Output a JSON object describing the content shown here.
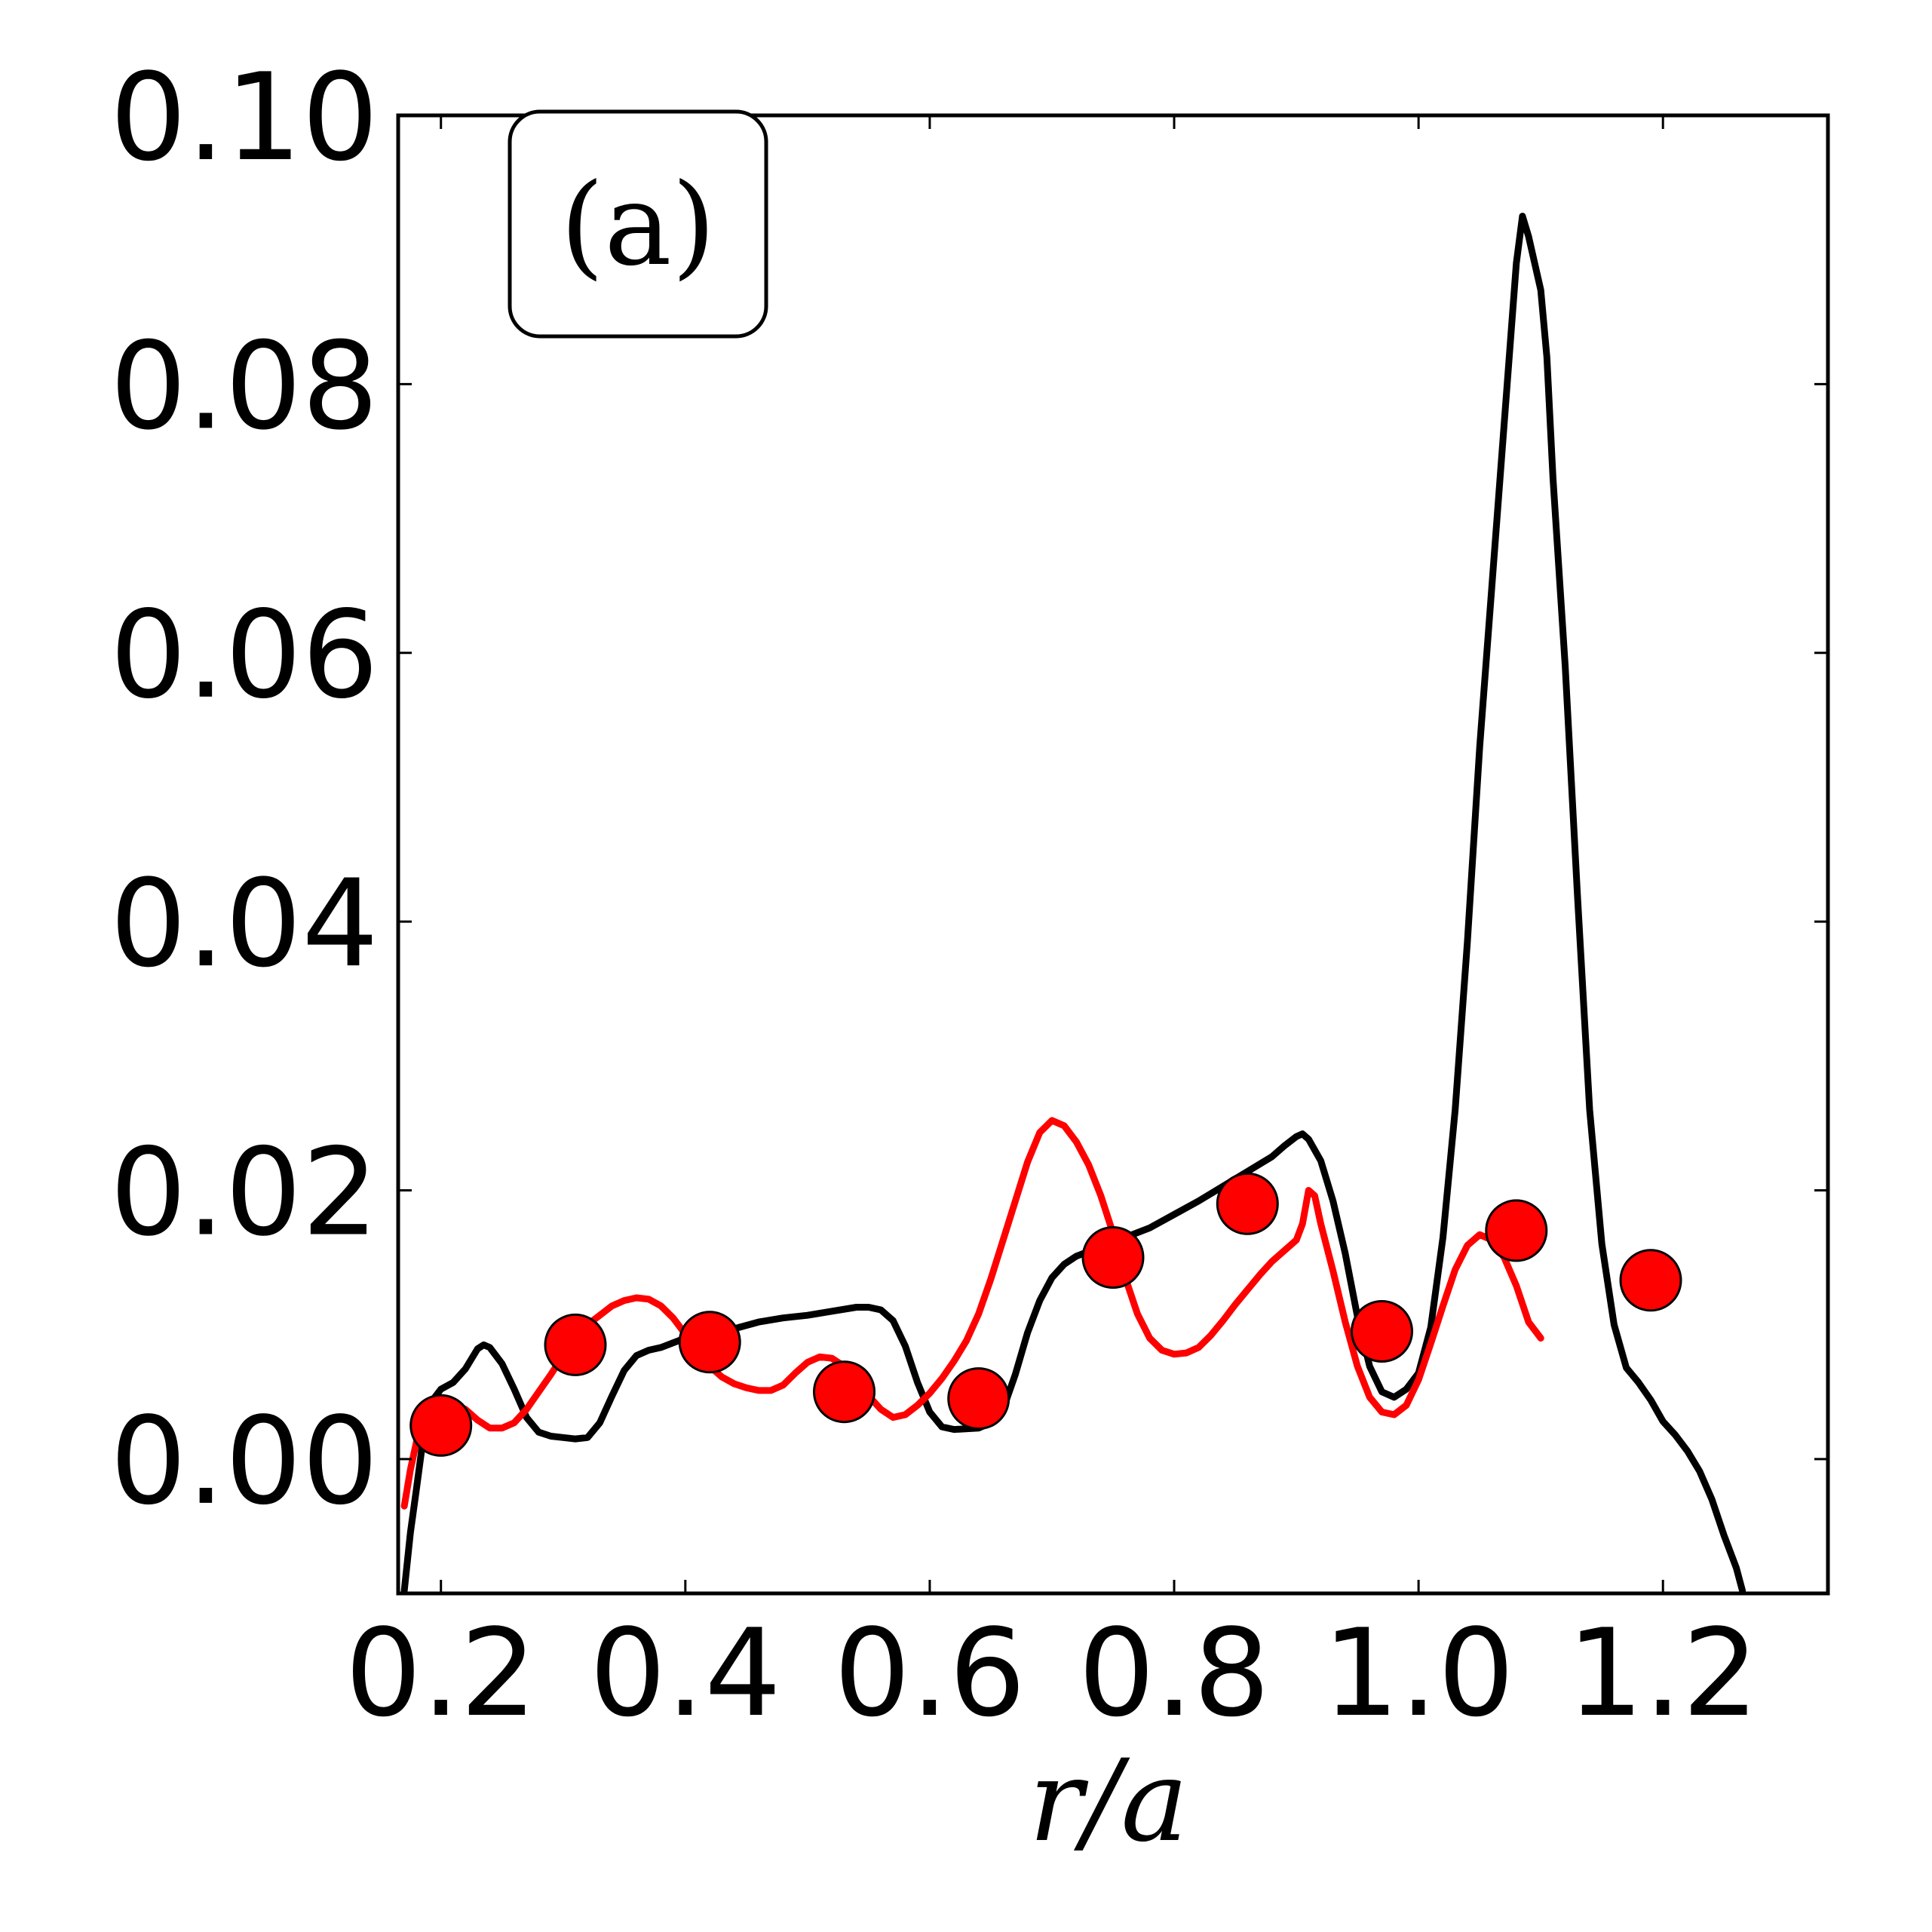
{
  "chart_data": {
    "type": "line",
    "panel_label": "(a)",
    "xlabel": "r/a",
    "ylabel": "",
    "xlim": [
      0.165,
      1.335
    ],
    "ylim": [
      -0.01,
      0.1
    ],
    "xticks": [
      0.2,
      0.4,
      0.6,
      0.8,
      1.0,
      1.2
    ],
    "xtick_labels": [
      "0.2",
      "0.4",
      "0.6",
      "0.8",
      "1.0",
      "1.2"
    ],
    "yticks": [
      0.0,
      0.02,
      0.04,
      0.06,
      0.08,
      0.1
    ],
    "ytick_labels": [
      "0.00",
      "0.02",
      "0.04",
      "0.06",
      "0.08",
      "0.10"
    ],
    "grid": false,
    "series": [
      {
        "color": "#000000",
        "style": "line",
        "points": [
          [
            0.17,
            -0.0098
          ],
          [
            0.175,
            -0.0055
          ],
          [
            0.18,
            -0.0022
          ],
          [
            0.185,
            0.0012
          ],
          [
            0.19,
            0.0036
          ],
          [
            0.195,
            0.0046
          ],
          [
            0.2,
            0.0052
          ],
          [
            0.21,
            0.0057
          ],
          [
            0.22,
            0.0067
          ],
          [
            0.23,
            0.0082
          ],
          [
            0.235,
            0.0085
          ],
          [
            0.24,
            0.0083
          ],
          [
            0.25,
            0.0071
          ],
          [
            0.26,
            0.0052
          ],
          [
            0.27,
            0.0031
          ],
          [
            0.28,
            0.002
          ],
          [
            0.29,
            0.0017
          ],
          [
            0.3,
            0.0016
          ],
          [
            0.31,
            0.0015
          ],
          [
            0.32,
            0.0016
          ],
          [
            0.33,
            0.0027
          ],
          [
            0.34,
            0.0047
          ],
          [
            0.35,
            0.0066
          ],
          [
            0.36,
            0.0077
          ],
          [
            0.37,
            0.0081
          ],
          [
            0.38,
            0.0083
          ],
          [
            0.4,
            0.009
          ],
          [
            0.42,
            0.0094
          ],
          [
            0.44,
            0.0097
          ],
          [
            0.46,
            0.0102
          ],
          [
            0.48,
            0.0105
          ],
          [
            0.5,
            0.0107
          ],
          [
            0.52,
            0.011
          ],
          [
            0.54,
            0.0113
          ],
          [
            0.55,
            0.0113
          ],
          [
            0.56,
            0.0111
          ],
          [
            0.57,
            0.0103
          ],
          [
            0.58,
            0.0084
          ],
          [
            0.59,
            0.0057
          ],
          [
            0.6,
            0.0035
          ],
          [
            0.61,
            0.0024
          ],
          [
            0.62,
            0.0022
          ],
          [
            0.64,
            0.0023
          ],
          [
            0.65,
            0.0027
          ],
          [
            0.66,
            0.0037
          ],
          [
            0.67,
            0.0063
          ],
          [
            0.68,
            0.0094
          ],
          [
            0.69,
            0.0118
          ],
          [
            0.7,
            0.0135
          ],
          [
            0.71,
            0.0145
          ],
          [
            0.72,
            0.0151
          ],
          [
            0.74,
            0.0158
          ],
          [
            0.76,
            0.0165
          ],
          [
            0.78,
            0.0172
          ],
          [
            0.8,
            0.0182
          ],
          [
            0.82,
            0.0192
          ],
          [
            0.84,
            0.0203
          ],
          [
            0.86,
            0.0214
          ],
          [
            0.88,
            0.0225
          ],
          [
            0.89,
            0.0233
          ],
          [
            0.9,
            0.024
          ],
          [
            0.905,
            0.0242
          ],
          [
            0.91,
            0.0238
          ],
          [
            0.92,
            0.0222
          ],
          [
            0.93,
            0.0192
          ],
          [
            0.94,
            0.0153
          ],
          [
            0.95,
            0.0106
          ],
          [
            0.96,
            0.0069
          ],
          [
            0.97,
            0.005
          ],
          [
            0.98,
            0.0046
          ],
          [
            0.99,
            0.0052
          ],
          [
            1.0,
            0.0064
          ],
          [
            1.01,
            0.0098
          ],
          [
            1.02,
            0.0165
          ],
          [
            1.03,
            0.026
          ],
          [
            1.04,
            0.0385
          ],
          [
            1.05,
            0.053
          ],
          [
            1.06,
            0.065
          ],
          [
            1.07,
            0.077
          ],
          [
            1.08,
            0.089
          ],
          [
            1.085,
            0.0925
          ],
          [
            1.09,
            0.091
          ],
          [
            1.1,
            0.087
          ],
          [
            1.105,
            0.082
          ],
          [
            1.11,
            0.073
          ],
          [
            1.12,
            0.059
          ],
          [
            1.13,
            0.042
          ],
          [
            1.14,
            0.026
          ],
          [
            1.15,
            0.016
          ],
          [
            1.16,
            0.01
          ],
          [
            1.17,
            0.0068
          ],
          [
            1.18,
            0.0057
          ],
          [
            1.19,
            0.0044
          ],
          [
            1.2,
            0.0028
          ],
          [
            1.21,
            0.0018
          ],
          [
            1.22,
            0.0006
          ],
          [
            1.23,
            -0.0009
          ],
          [
            1.24,
            -0.003
          ],
          [
            1.25,
            -0.0057
          ],
          [
            1.26,
            -0.0081
          ],
          [
            1.265,
            -0.0098
          ]
        ]
      },
      {
        "color": "#ff0000",
        "style": "line-markers",
        "points": [
          [
            0.17,
            -0.0035
          ],
          [
            0.175,
            -0.0008
          ],
          [
            0.18,
            0.0013
          ],
          [
            0.19,
            0.0031
          ],
          [
            0.2,
            0.004
          ],
          [
            0.21,
            0.0041
          ],
          [
            0.22,
            0.0037
          ],
          [
            0.23,
            0.0029
          ],
          [
            0.24,
            0.0023
          ],
          [
            0.25,
            0.0023
          ],
          [
            0.26,
            0.0027
          ],
          [
            0.27,
            0.0037
          ],
          [
            0.28,
            0.005
          ],
          [
            0.29,
            0.0063
          ],
          [
            0.3,
            0.0077
          ],
          [
            0.31,
            0.009
          ],
          [
            0.32,
            0.01
          ],
          [
            0.33,
            0.0107
          ],
          [
            0.34,
            0.0114
          ],
          [
            0.35,
            0.0118
          ],
          [
            0.36,
            0.012
          ],
          [
            0.37,
            0.0119
          ],
          [
            0.38,
            0.0114
          ],
          [
            0.39,
            0.0105
          ],
          [
            0.4,
            0.0093
          ],
          [
            0.41,
            0.0081
          ],
          [
            0.42,
            0.0069
          ],
          [
            0.43,
            0.0061
          ],
          [
            0.44,
            0.0056
          ],
          [
            0.45,
            0.0053
          ],
          [
            0.46,
            0.0051
          ],
          [
            0.47,
            0.0051
          ],
          [
            0.48,
            0.0055
          ],
          [
            0.49,
            0.0064
          ],
          [
            0.5,
            0.0072
          ],
          [
            0.51,
            0.0076
          ],
          [
            0.52,
            0.0075
          ],
          [
            0.53,
            0.0069
          ],
          [
            0.54,
            0.0059
          ],
          [
            0.55,
            0.0047
          ],
          [
            0.56,
            0.0037
          ],
          [
            0.57,
            0.0031
          ],
          [
            0.58,
            0.0033
          ],
          [
            0.59,
            0.004
          ],
          [
            0.6,
            0.0049
          ],
          [
            0.61,
            0.006
          ],
          [
            0.62,
            0.0073
          ],
          [
            0.63,
            0.0088
          ],
          [
            0.64,
            0.0108
          ],
          [
            0.65,
            0.0134
          ],
          [
            0.66,
            0.0163
          ],
          [
            0.67,
            0.0192
          ],
          [
            0.68,
            0.0221
          ],
          [
            0.69,
            0.0243
          ],
          [
            0.7,
            0.0252
          ],
          [
            0.71,
            0.0248
          ],
          [
            0.72,
            0.0236
          ],
          [
            0.73,
            0.0219
          ],
          [
            0.74,
            0.0196
          ],
          [
            0.75,
            0.0168
          ],
          [
            0.76,
            0.0135
          ],
          [
            0.77,
            0.0108
          ],
          [
            0.78,
            0.009
          ],
          [
            0.79,
            0.0081
          ],
          [
            0.8,
            0.0078
          ],
          [
            0.81,
            0.0079
          ],
          [
            0.82,
            0.0083
          ],
          [
            0.83,
            0.0092
          ],
          [
            0.84,
            0.0103
          ],
          [
            0.85,
            0.0115
          ],
          [
            0.86,
            0.0126
          ],
          [
            0.87,
            0.0137
          ],
          [
            0.88,
            0.0147
          ],
          [
            0.89,
            0.0155
          ],
          [
            0.9,
            0.0163
          ],
          [
            0.905,
            0.0175
          ],
          [
            0.91,
            0.02
          ],
          [
            0.915,
            0.0196
          ],
          [
            0.92,
            0.0175
          ],
          [
            0.93,
            0.014
          ],
          [
            0.94,
            0.0102
          ],
          [
            0.95,
            0.0069
          ],
          [
            0.96,
            0.0046
          ],
          [
            0.97,
            0.0035
          ],
          [
            0.98,
            0.0033
          ],
          [
            0.99,
            0.004
          ],
          [
            1.0,
            0.0059
          ],
          [
            1.01,
            0.0086
          ],
          [
            1.02,
            0.0114
          ],
          [
            1.03,
            0.0141
          ],
          [
            1.04,
            0.0159
          ],
          [
            1.05,
            0.0167
          ],
          [
            1.06,
            0.0163
          ],
          [
            1.07,
            0.015
          ],
          [
            1.08,
            0.0129
          ],
          [
            1.09,
            0.0102
          ],
          [
            1.1,
            0.009
          ]
        ],
        "markers": [
          [
            0.2,
            0.0025
          ],
          [
            0.31,
            0.0085
          ],
          [
            0.42,
            0.0087
          ],
          [
            0.53,
            0.005
          ],
          [
            0.64,
            0.0045
          ],
          [
            0.75,
            0.015
          ],
          [
            0.86,
            0.019
          ],
          [
            0.97,
            0.0095
          ],
          [
            1.08,
            0.017
          ],
          [
            1.19,
            0.0133
          ]
        ]
      }
    ]
  }
}
